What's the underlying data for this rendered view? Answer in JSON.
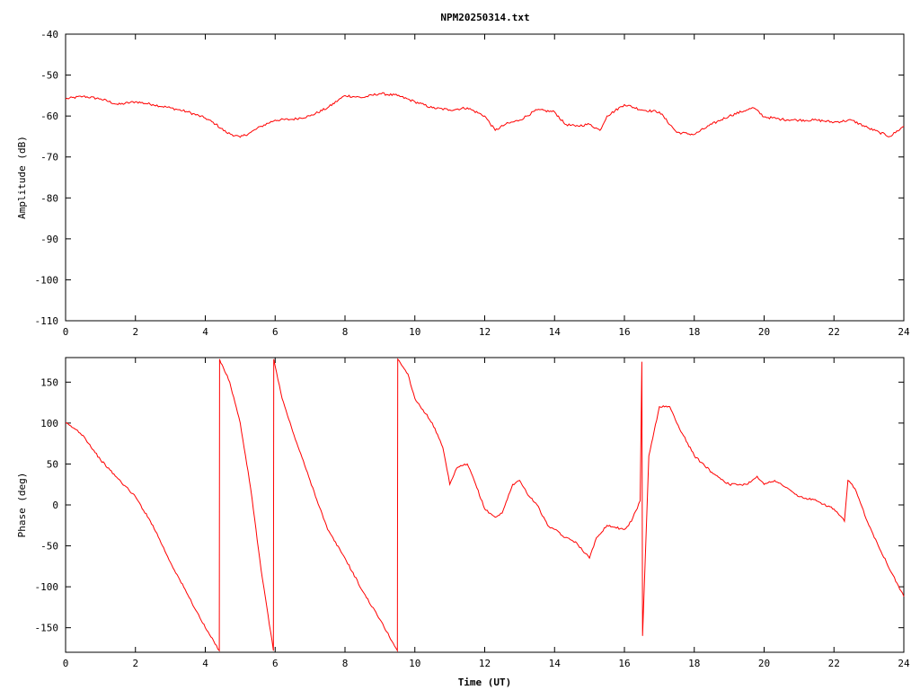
{
  "title": "NPM20250314.txt",
  "colors": {
    "series": "#ff0000",
    "axes": "#000000",
    "background": "#ffffff"
  },
  "chart_data": [
    {
      "type": "line",
      "title": "NPM20250314.txt",
      "xlabel": "",
      "ylabel": "Amplitude (dB)",
      "xlim": [
        0,
        24
      ],
      "ylim": [
        -110,
        -40
      ],
      "xticks": [
        "0",
        "2",
        "4",
        "6",
        "8",
        "10",
        "12",
        "14",
        "16",
        "18",
        "20",
        "22",
        "24"
      ],
      "yticks": [
        "-40",
        "-50",
        "-60",
        "-70",
        "-80",
        "-90",
        "-100",
        "-110"
      ],
      "grid": false,
      "x": [
        0,
        0.5,
        1,
        1.5,
        2,
        2.5,
        3,
        3.5,
        4,
        4.3,
        4.6,
        5,
        5.3,
        5.6,
        6,
        6.5,
        7,
        7.5,
        8,
        8.5,
        9,
        9.5,
        10,
        10.5,
        11,
        11.5,
        12,
        12.3,
        12.6,
        13,
        13.5,
        14,
        14.3,
        14.6,
        15,
        15.3,
        15.5,
        16,
        16.5,
        17,
        17.5,
        18,
        18.5,
        19,
        19.5,
        19.7,
        20,
        20.5,
        21,
        21.5,
        22,
        22.5,
        23,
        23.3,
        23.6,
        24
      ],
      "series": [
        {
          "values": [
            -55.8,
            -55.2,
            -55.8,
            -57.2,
            -56.5,
            -57.2,
            -58,
            -59,
            -60.5,
            -62,
            -64,
            -65.2,
            -64,
            -62.5,
            -61,
            -60.8,
            -60,
            -58,
            -55,
            -55.5,
            -54.5,
            -55,
            -56.5,
            -58,
            -58.5,
            -58,
            -60,
            -63.5,
            -62,
            -61,
            -58.5,
            -59,
            -62,
            -62.5,
            -62,
            -63.5,
            -60,
            -57.2,
            -58.5,
            -59,
            -64,
            -64.5,
            -62,
            -60,
            -58.5,
            -58,
            -60.2,
            -60.8,
            -61,
            -61,
            -61.5,
            -61,
            -63,
            -64,
            -65,
            -62.5
          ]
        }
      ]
    },
    {
      "type": "line",
      "title": "",
      "xlabel": "Time (UT)",
      "ylabel": "Phase (deg)",
      "xlim": [
        0,
        24
      ],
      "ylim": [
        -180,
        180
      ],
      "xticks": [
        "0",
        "2",
        "4",
        "6",
        "8",
        "10",
        "12",
        "14",
        "16",
        "18",
        "20",
        "22",
        "24"
      ],
      "yticks": [
        "150",
        "100",
        "50",
        "0",
        "-50",
        "-100",
        "-150"
      ],
      "grid": false,
      "x": [
        0,
        0.3,
        0.5,
        1,
        1.5,
        2,
        2.5,
        3,
        3.5,
        4,
        4.4,
        4.41,
        4.7,
        5,
        5.3,
        5.6,
        5.95,
        5.96,
        6.2,
        6.5,
        7,
        7.5,
        8,
        8.5,
        9,
        9.5,
        9.51,
        9.8,
        10,
        10.5,
        10.8,
        11,
        11.2,
        11.5,
        11.7,
        12,
        12.3,
        12.5,
        12.8,
        13,
        13.2,
        13.5,
        13.8,
        14,
        14.3,
        14.6,
        15,
        15.2,
        15.5,
        16,
        16.2,
        16.45,
        16.5,
        16.52,
        16.7,
        17,
        17.3,
        17.5,
        18,
        18.5,
        19,
        19.5,
        19.8,
        20,
        20.3,
        20.5,
        21,
        21.5,
        22,
        22.3,
        22.4,
        22.6,
        23,
        23.5,
        24
      ],
      "series": [
        {
          "values": [
            100,
            92,
            85,
            55,
            32,
            10,
            -25,
            -70,
            -110,
            -150,
            -178,
            178,
            150,
            100,
            20,
            -80,
            -178,
            178,
            130,
            90,
            30,
            -30,
            -65,
            -105,
            -140,
            -178,
            178,
            160,
            130,
            100,
            70,
            25,
            45,
            50,
            30,
            -5,
            -15,
            -10,
            25,
            30,
            15,
            0,
            -25,
            -30,
            -40,
            -45,
            -65,
            -40,
            -25,
            -30,
            -20,
            5,
            175,
            -160,
            60,
            120,
            120,
            100,
            60,
            40,
            25,
            25,
            35,
            25,
            30,
            25,
            10,
            5,
            -5,
            -20,
            30,
            20,
            -25,
            -70,
            -112
          ]
        }
      ]
    }
  ]
}
